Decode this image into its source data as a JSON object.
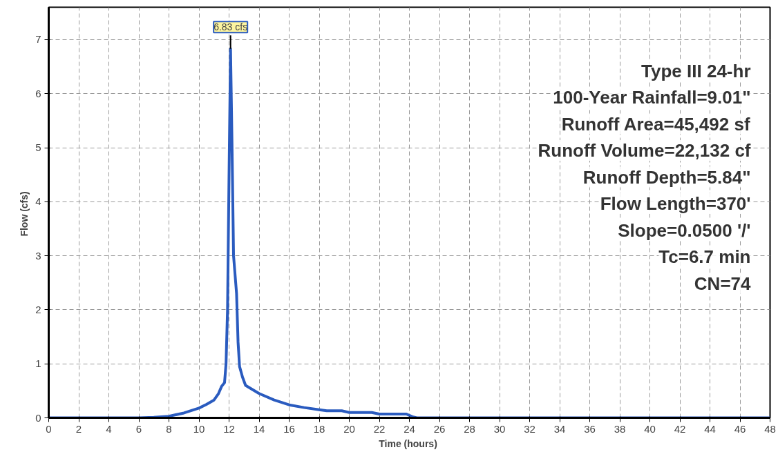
{
  "chart_data": {
    "type": "line",
    "xlabel": "Time  (hours)",
    "ylabel": "Flow  (cfs)",
    "x": [
      0,
      6,
      7,
      8,
      9,
      10,
      10.5,
      11,
      11.3,
      11.5,
      11.7,
      11.8,
      11.9,
      12.0,
      12.1,
      12.2,
      12.3,
      12.5,
      12.6,
      12.7,
      12.9,
      13.1,
      14,
      15,
      16,
      17,
      18,
      18.5,
      19.5,
      20,
      21.5,
      22,
      23.8,
      24.2,
      24.5,
      48
    ],
    "series": [
      {
        "color": "#2a5bbf",
        "values": [
          0,
          0,
          0.01,
          0.03,
          0.09,
          0.18,
          0.25,
          0.33,
          0.45,
          0.58,
          0.65,
          1.0,
          2.0,
          4.5,
          6.83,
          5.0,
          3.0,
          2.3,
          1.4,
          0.95,
          0.75,
          0.6,
          0.45,
          0.33,
          0.24,
          0.19,
          0.15,
          0.13,
          0.13,
          0.1,
          0.1,
          0.07,
          0.07,
          0.02,
          0,
          0
        ]
      }
    ],
    "xlim": [
      0,
      48
    ],
    "ylim": [
      0,
      7.6
    ],
    "xticks": [
      0,
      2,
      4,
      6,
      8,
      10,
      12,
      14,
      16,
      18,
      20,
      22,
      24,
      26,
      28,
      30,
      32,
      34,
      36,
      38,
      40,
      42,
      44,
      46,
      48
    ],
    "yticks": [
      0,
      1,
      2,
      3,
      4,
      5,
      6,
      7
    ],
    "grid": true,
    "marker": "none",
    "line_style": "solid",
    "annotations": [
      {
        "text": "6.83 cfs",
        "x": 12.1,
        "y": 6.83
      },
      "Type III 24-hr",
      "100-Year Rainfall=9.01\"",
      "Runoff Area=45,492 sf",
      "Runoff Volume=22,132 cf",
      "Runoff Depth=5.84\"",
      "Flow Length=370'",
      "Slope=0.0500 '/'",
      "Tc=6.7 min",
      "CN=74"
    ]
  }
}
